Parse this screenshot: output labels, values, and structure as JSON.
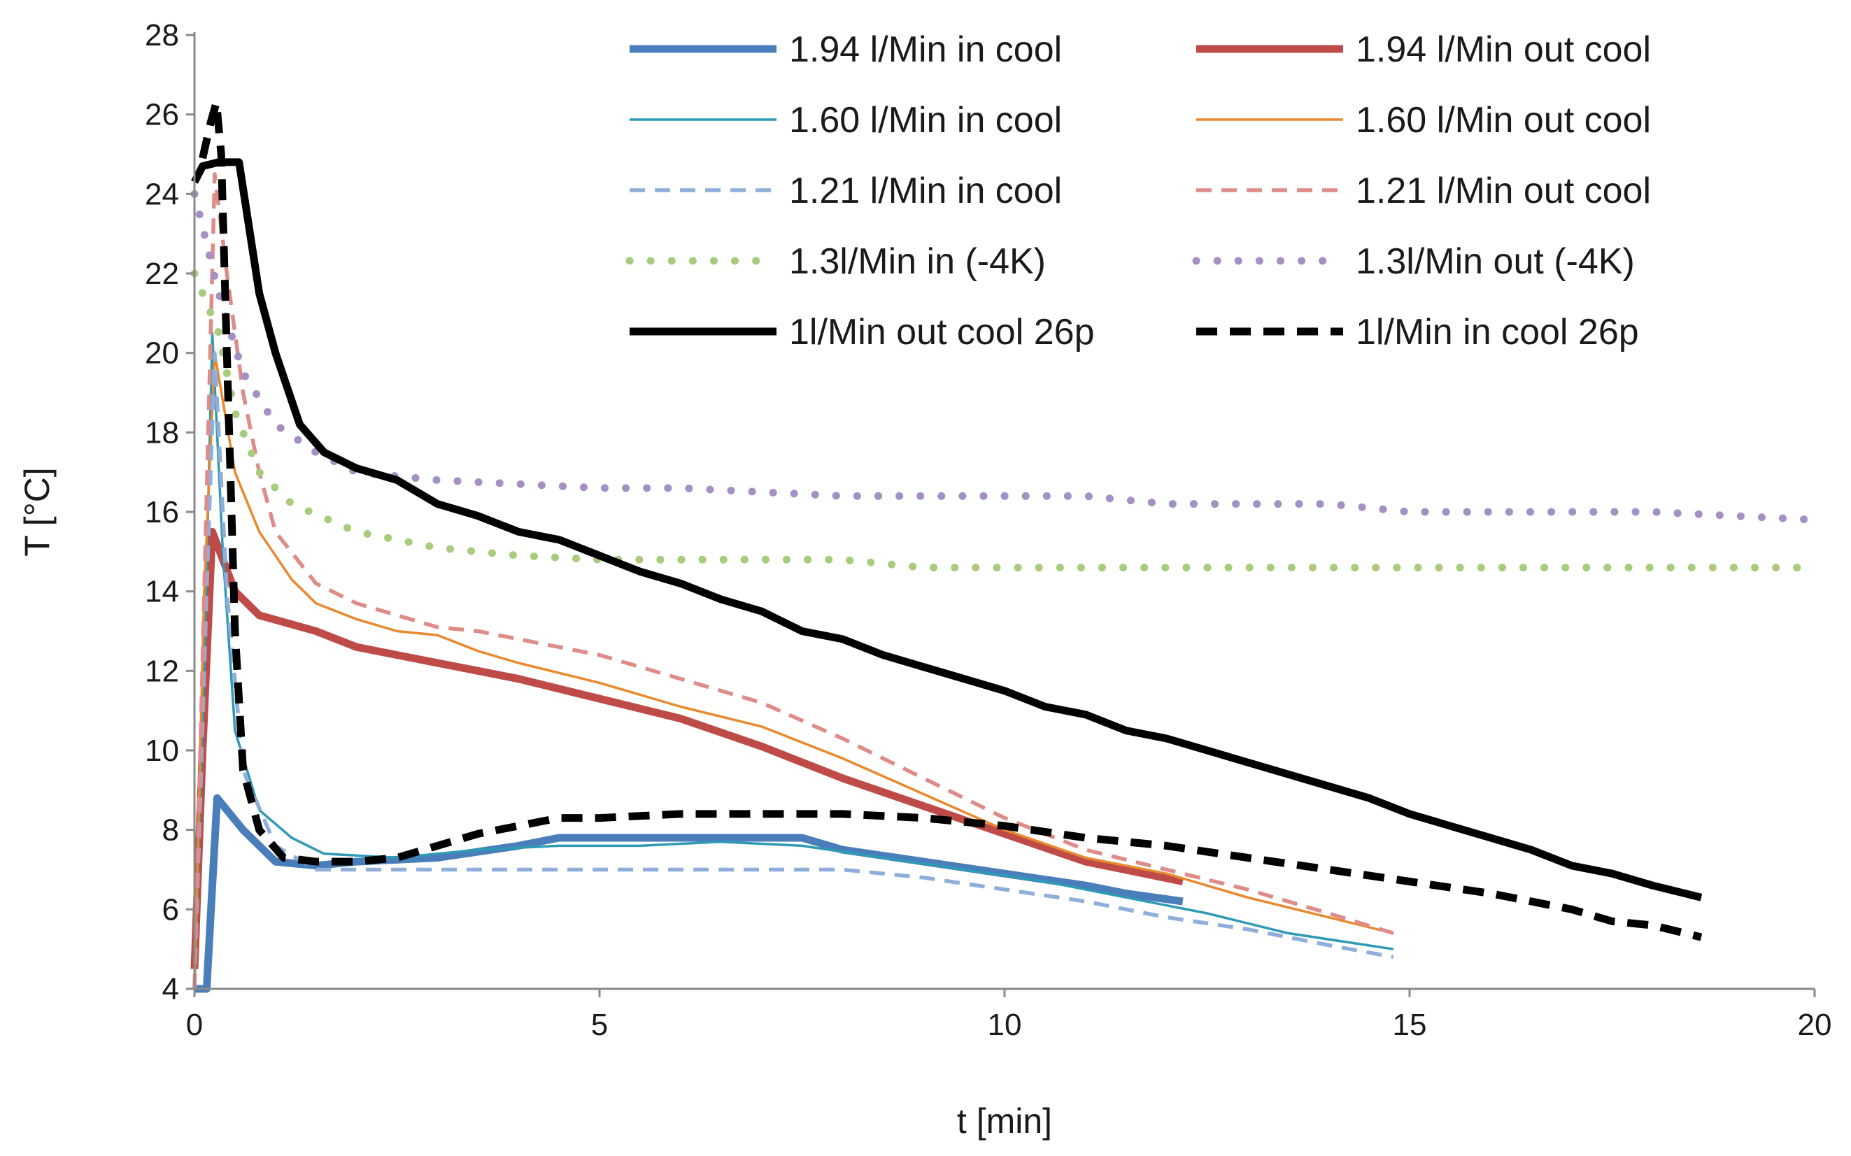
{
  "chart_data": {
    "type": "line",
    "title": "",
    "xlabel": "t [min]",
    "ylabel": "T [°C]",
    "xlim": [
      0,
      20
    ],
    "ylim": [
      4,
      28
    ],
    "xticks": [
      0,
      5,
      10,
      15,
      20
    ],
    "yticks": [
      4,
      6,
      8,
      10,
      12,
      14,
      16,
      18,
      20,
      22,
      24,
      26,
      28
    ],
    "grid": false,
    "legend_position": "top-right",
    "series": [
      {
        "name": "1.94 l/Min in cool",
        "color": "#4a7ebb",
        "style": "solid",
        "weight": "thick",
        "points": [
          [
            0,
            4
          ],
          [
            0.15,
            4
          ],
          [
            0.28,
            8.8
          ],
          [
            0.6,
            8
          ],
          [
            1,
            7.2
          ],
          [
            1.5,
            7.1
          ],
          [
            2,
            7.2
          ],
          [
            3,
            7.3
          ],
          [
            4,
            7.6
          ],
          [
            4.5,
            7.8
          ],
          [
            5,
            7.8
          ],
          [
            6,
            7.8
          ],
          [
            7,
            7.8
          ],
          [
            7.5,
            7.8
          ],
          [
            8,
            7.5
          ],
          [
            9,
            7.2
          ],
          [
            10,
            6.9
          ],
          [
            11,
            6.6
          ],
          [
            11.5,
            6.4
          ],
          [
            12.2,
            6.2
          ]
        ]
      },
      {
        "name": "1.94 l/Min out cool",
        "color": "#be4b48",
        "style": "solid",
        "weight": "thick",
        "points": [
          [
            0,
            4.5
          ],
          [
            0.1,
            10
          ],
          [
            0.22,
            15.5
          ],
          [
            0.5,
            14
          ],
          [
            0.8,
            13.4
          ],
          [
            1.5,
            13
          ],
          [
            2,
            12.6
          ],
          [
            2.5,
            12.4
          ],
          [
            3,
            12.2
          ],
          [
            3.5,
            12
          ],
          [
            4,
            11.8
          ],
          [
            5,
            11.3
          ],
          [
            6,
            10.8
          ],
          [
            7,
            10.1
          ],
          [
            8,
            9.3
          ],
          [
            9,
            8.6
          ],
          [
            10,
            7.9
          ],
          [
            11,
            7.2
          ],
          [
            12.2,
            6.7
          ]
        ]
      },
      {
        "name": "1.60 l/Min in cool",
        "color": "#2e9ab5",
        "style": "solid",
        "weight": "thin",
        "points": [
          [
            0,
            4
          ],
          [
            0.12,
            12
          ],
          [
            0.22,
            20.5
          ],
          [
            0.35,
            15
          ],
          [
            0.5,
            10.5
          ],
          [
            0.8,
            8.5
          ],
          [
            1.2,
            7.8
          ],
          [
            1.6,
            7.4
          ],
          [
            2.5,
            7.3
          ],
          [
            3.5,
            7.5
          ],
          [
            4.5,
            7.6
          ],
          [
            5.5,
            7.6
          ],
          [
            6.5,
            7.7
          ],
          [
            7.5,
            7.6
          ],
          [
            8.5,
            7.3
          ],
          [
            9.5,
            7
          ],
          [
            10.5,
            6.7
          ],
          [
            11.5,
            6.3
          ],
          [
            12.5,
            5.9
          ],
          [
            13.5,
            5.4
          ],
          [
            14.8,
            5
          ]
        ]
      },
      {
        "name": "1.60 l/Min out cool",
        "color": "#e8892d",
        "style": "solid",
        "weight": "thin",
        "points": [
          [
            0,
            4
          ],
          [
            0.12,
            14
          ],
          [
            0.25,
            20
          ],
          [
            0.5,
            17
          ],
          [
            0.8,
            15.5
          ],
          [
            1.2,
            14.3
          ],
          [
            1.5,
            13.7
          ],
          [
            2,
            13.3
          ],
          [
            2.5,
            13
          ],
          [
            3,
            12.9
          ],
          [
            3.5,
            12.5
          ],
          [
            4,
            12.2
          ],
          [
            5,
            11.7
          ],
          [
            6,
            11.1
          ],
          [
            7,
            10.6
          ],
          [
            8,
            9.8
          ],
          [
            9,
            8.9
          ],
          [
            10,
            8
          ],
          [
            11,
            7.3
          ],
          [
            12,
            6.9
          ],
          [
            13,
            6.3
          ],
          [
            14,
            5.8
          ],
          [
            14.8,
            5.4
          ]
        ]
      },
      {
        "name": "1.21 l/Min in cool",
        "color": "#8faed9",
        "style": "dashed",
        "weight": "medium",
        "points": [
          [
            0,
            4
          ],
          [
            0.15,
            14
          ],
          [
            0.25,
            20
          ],
          [
            0.4,
            14
          ],
          [
            0.6,
            9.5
          ],
          [
            1,
            7.6
          ],
          [
            1.5,
            7
          ],
          [
            2,
            7
          ],
          [
            3,
            7
          ],
          [
            4,
            7
          ],
          [
            5,
            7
          ],
          [
            6,
            7
          ],
          [
            7,
            7
          ],
          [
            8,
            7
          ],
          [
            9,
            6.8
          ],
          [
            10,
            6.5
          ],
          [
            11,
            6.2
          ],
          [
            12,
            5.8
          ],
          [
            13,
            5.5
          ],
          [
            14,
            5.1
          ],
          [
            14.8,
            4.8
          ]
        ]
      },
      {
        "name": "1.21 l/Min out cool",
        "color": "#de8c88",
        "style": "dashed",
        "weight": "medium",
        "points": [
          [
            0,
            4
          ],
          [
            0.12,
            14
          ],
          [
            0.25,
            24.5
          ],
          [
            0.4,
            22
          ],
          [
            0.6,
            19
          ],
          [
            0.8,
            17
          ],
          [
            1,
            15.5
          ],
          [
            1.5,
            14.2
          ],
          [
            2,
            13.7
          ],
          [
            2.5,
            13.4
          ],
          [
            3,
            13.1
          ],
          [
            3.5,
            13
          ],
          [
            4,
            12.8
          ],
          [
            5,
            12.4
          ],
          [
            6,
            11.8
          ],
          [
            7,
            11.2
          ],
          [
            8,
            10.3
          ],
          [
            9,
            9.3
          ],
          [
            10,
            8.3
          ],
          [
            11,
            7.5
          ],
          [
            12,
            7
          ],
          [
            13,
            6.5
          ],
          [
            14,
            5.9
          ],
          [
            14.8,
            5.4
          ]
        ]
      },
      {
        "name": "1.3l/Min in (-4K)",
        "color": "#a9cb7d",
        "style": "dotted",
        "weight": "thick",
        "points": [
          [
            0,
            22
          ],
          [
            0.3,
            20.5
          ],
          [
            0.5,
            18.5
          ],
          [
            0.8,
            17
          ],
          [
            1.2,
            16.2
          ],
          [
            2,
            15.5
          ],
          [
            3,
            15.1
          ],
          [
            4,
            14.9
          ],
          [
            5,
            14.8
          ],
          [
            6,
            14.8
          ],
          [
            7,
            14.8
          ],
          [
            8,
            14.8
          ],
          [
            9,
            14.6
          ],
          [
            10,
            14.6
          ],
          [
            12,
            14.6
          ],
          [
            14,
            14.6
          ],
          [
            16,
            14.6
          ],
          [
            18,
            14.6
          ],
          [
            20,
            14.6
          ]
        ]
      },
      {
        "name": "1.3l/Min out (-4K)",
        "color": "#a590c4",
        "style": "dotted",
        "weight": "thick",
        "points": [
          [
            0,
            24
          ],
          [
            0.3,
            21.5
          ],
          [
            0.6,
            19.5
          ],
          [
            1,
            18.2
          ],
          [
            1.5,
            17.5
          ],
          [
            2,
            17
          ],
          [
            2.5,
            16.9
          ],
          [
            3,
            16.8
          ],
          [
            4,
            16.7
          ],
          [
            5,
            16.6
          ],
          [
            6,
            16.6
          ],
          [
            7,
            16.5
          ],
          [
            8,
            16.4
          ],
          [
            9,
            16.4
          ],
          [
            10,
            16.4
          ],
          [
            11,
            16.4
          ],
          [
            12,
            16.2
          ],
          [
            13,
            16.2
          ],
          [
            14,
            16.2
          ],
          [
            15,
            16
          ],
          [
            16,
            16
          ],
          [
            17,
            16
          ],
          [
            18,
            16
          ],
          [
            19,
            15.9
          ],
          [
            20,
            15.8
          ]
        ]
      },
      {
        "name": "1l/Min out cool 26p",
        "color": "#000000",
        "style": "solid",
        "weight": "thick",
        "points": [
          [
            0,
            24.3
          ],
          [
            0.1,
            24.7
          ],
          [
            0.3,
            24.8
          ],
          [
            0.55,
            24.8
          ],
          [
            0.8,
            21.5
          ],
          [
            1,
            20
          ],
          [
            1.3,
            18.2
          ],
          [
            1.6,
            17.5
          ],
          [
            2,
            17.1
          ],
          [
            2.5,
            16.8
          ],
          [
            3,
            16.2
          ],
          [
            3.5,
            15.9
          ],
          [
            4,
            15.5
          ],
          [
            4.5,
            15.3
          ],
          [
            5,
            14.9
          ],
          [
            5.5,
            14.5
          ],
          [
            6,
            14.2
          ],
          [
            6.5,
            13.8
          ],
          [
            7,
            13.5
          ],
          [
            7.5,
            13
          ],
          [
            8,
            12.8
          ],
          [
            8.5,
            12.4
          ],
          [
            9,
            12.1
          ],
          [
            9.5,
            11.8
          ],
          [
            10,
            11.5
          ],
          [
            10.5,
            11.1
          ],
          [
            11,
            10.9
          ],
          [
            11.5,
            10.5
          ],
          [
            12,
            10.3
          ],
          [
            12.5,
            10
          ],
          [
            13,
            9.7
          ],
          [
            13.5,
            9.4
          ],
          [
            14,
            9.1
          ],
          [
            14.5,
            8.8
          ],
          [
            15,
            8.4
          ],
          [
            15.5,
            8.1
          ],
          [
            16,
            7.8
          ],
          [
            16.5,
            7.5
          ],
          [
            17,
            7.1
          ],
          [
            17.5,
            6.9
          ],
          [
            18,
            6.6
          ],
          [
            18.6,
            6.3
          ]
        ]
      },
      {
        "name": "1l/Min in cool 26p",
        "color": "#000000",
        "style": "dashed",
        "weight": "thick",
        "points": [
          [
            0.1,
            24.9
          ],
          [
            0.2,
            25.8
          ],
          [
            0.27,
            26.3
          ],
          [
            0.33,
            25
          ],
          [
            0.4,
            20
          ],
          [
            0.5,
            13
          ],
          [
            0.6,
            9.5
          ],
          [
            0.8,
            8
          ],
          [
            1.1,
            7.3
          ],
          [
            1.5,
            7.2
          ],
          [
            2,
            7.2
          ],
          [
            2.5,
            7.3
          ],
          [
            3,
            7.6
          ],
          [
            3.5,
            7.9
          ],
          [
            4,
            8.1
          ],
          [
            4.5,
            8.3
          ],
          [
            5,
            8.3
          ],
          [
            6,
            8.4
          ],
          [
            7,
            8.4
          ],
          [
            8,
            8.4
          ],
          [
            9,
            8.3
          ],
          [
            10,
            8.1
          ],
          [
            11,
            7.8
          ],
          [
            12,
            7.6
          ],
          [
            13,
            7.3
          ],
          [
            14,
            7
          ],
          [
            15,
            6.7
          ],
          [
            16,
            6.4
          ],
          [
            17,
            6
          ],
          [
            17.5,
            5.7
          ],
          [
            18,
            5.6
          ],
          [
            18.6,
            5.3
          ]
        ]
      }
    ]
  }
}
